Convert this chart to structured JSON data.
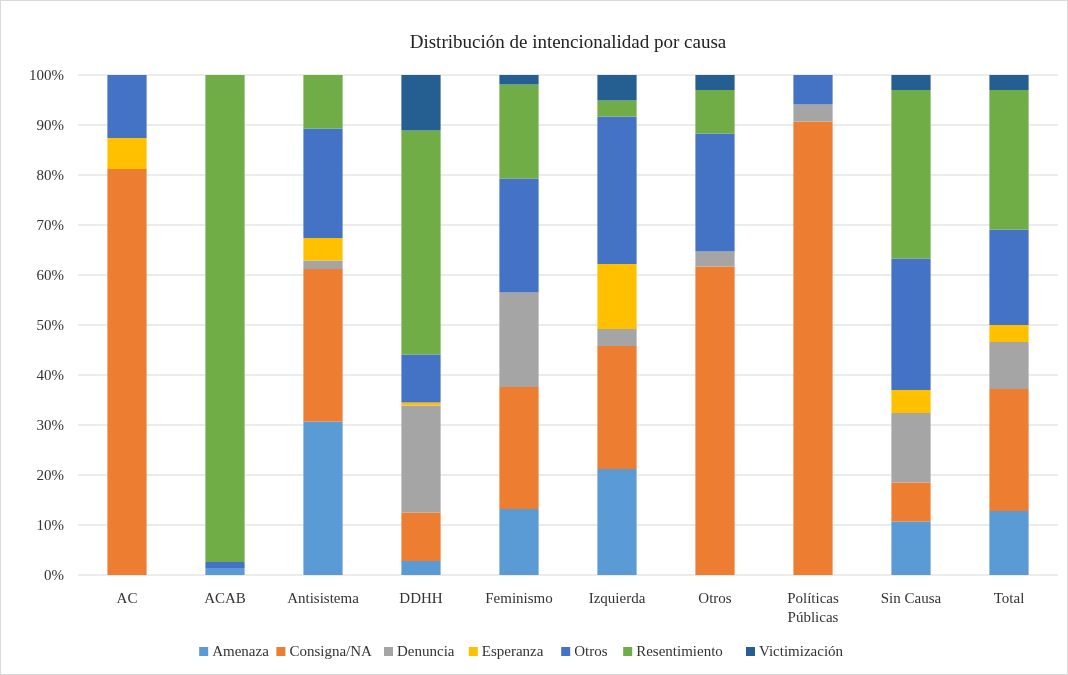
{
  "chart_data": {
    "type": "bar",
    "stacked": true,
    "title": "Distribución de intencionalidad por causa",
    "categories": [
      "AC",
      "ACAB",
      "Antisistema",
      "DDHH",
      "Feminismo",
      "Izquierda",
      "Otros",
      "Políticas Públicas",
      "Sin Causa",
      "Total"
    ],
    "series": [
      {
        "name": "Amenaza",
        "color": "#5b9bd5",
        "values": [
          0,
          1.4,
          30.7,
          2.8,
          13.2,
          21.2,
          0,
          0,
          10.7,
          12.8
        ]
      },
      {
        "name": "Consigna/NA",
        "color": "#ed7d31",
        "values": [
          81.2,
          0,
          30.5,
          9.7,
          24.4,
          24.6,
          61.7,
          90.7,
          7.8,
          24.4
        ]
      },
      {
        "name": "Denuncia",
        "color": "#a5a5a5",
        "values": [
          0,
          0,
          1.7,
          21.4,
          18.9,
          3.4,
          3.0,
          3.4,
          13.9,
          9.4
        ]
      },
      {
        "name": "Esperanza",
        "color": "#ffc000",
        "values": [
          6.2,
          0,
          4.5,
          0.6,
          0,
          13.0,
          0,
          0,
          4.6,
          3.4
        ]
      },
      {
        "name": "Otros",
        "color": "#4472c4",
        "values": [
          12.6,
          1.2,
          21.9,
          9.6,
          22.8,
          29.5,
          23.6,
          5.9,
          26.3,
          19.1
        ]
      },
      {
        "name": "Resentimiento",
        "color": "#70ad47",
        "values": [
          0,
          97.4,
          10.7,
          44.8,
          18.8,
          3.2,
          8.7,
          0,
          33.7,
          27.9
        ]
      },
      {
        "name": "Victimización",
        "color": "#255e91",
        "values": [
          0,
          0,
          0,
          11.1,
          1.9,
          5.1,
          3.0,
          0,
          3.0,
          3.0
        ]
      }
    ],
    "ylim": [
      0,
      100
    ],
    "yticks": [
      {
        "value": 0,
        "label": "0%"
      },
      {
        "value": 10,
        "label": "10%"
      },
      {
        "value": 20,
        "label": "20%"
      },
      {
        "value": 30,
        "label": "30%"
      },
      {
        "value": 40,
        "label": "40%"
      },
      {
        "value": 50,
        "label": "50%"
      },
      {
        "value": 60,
        "label": "60%"
      },
      {
        "value": 70,
        "label": "70%"
      },
      {
        "value": 80,
        "label": "80%"
      },
      {
        "value": 90,
        "label": "90%"
      },
      {
        "value": 100,
        "label": "100%"
      }
    ],
    "grid": "y",
    "legend": "bottom"
  }
}
